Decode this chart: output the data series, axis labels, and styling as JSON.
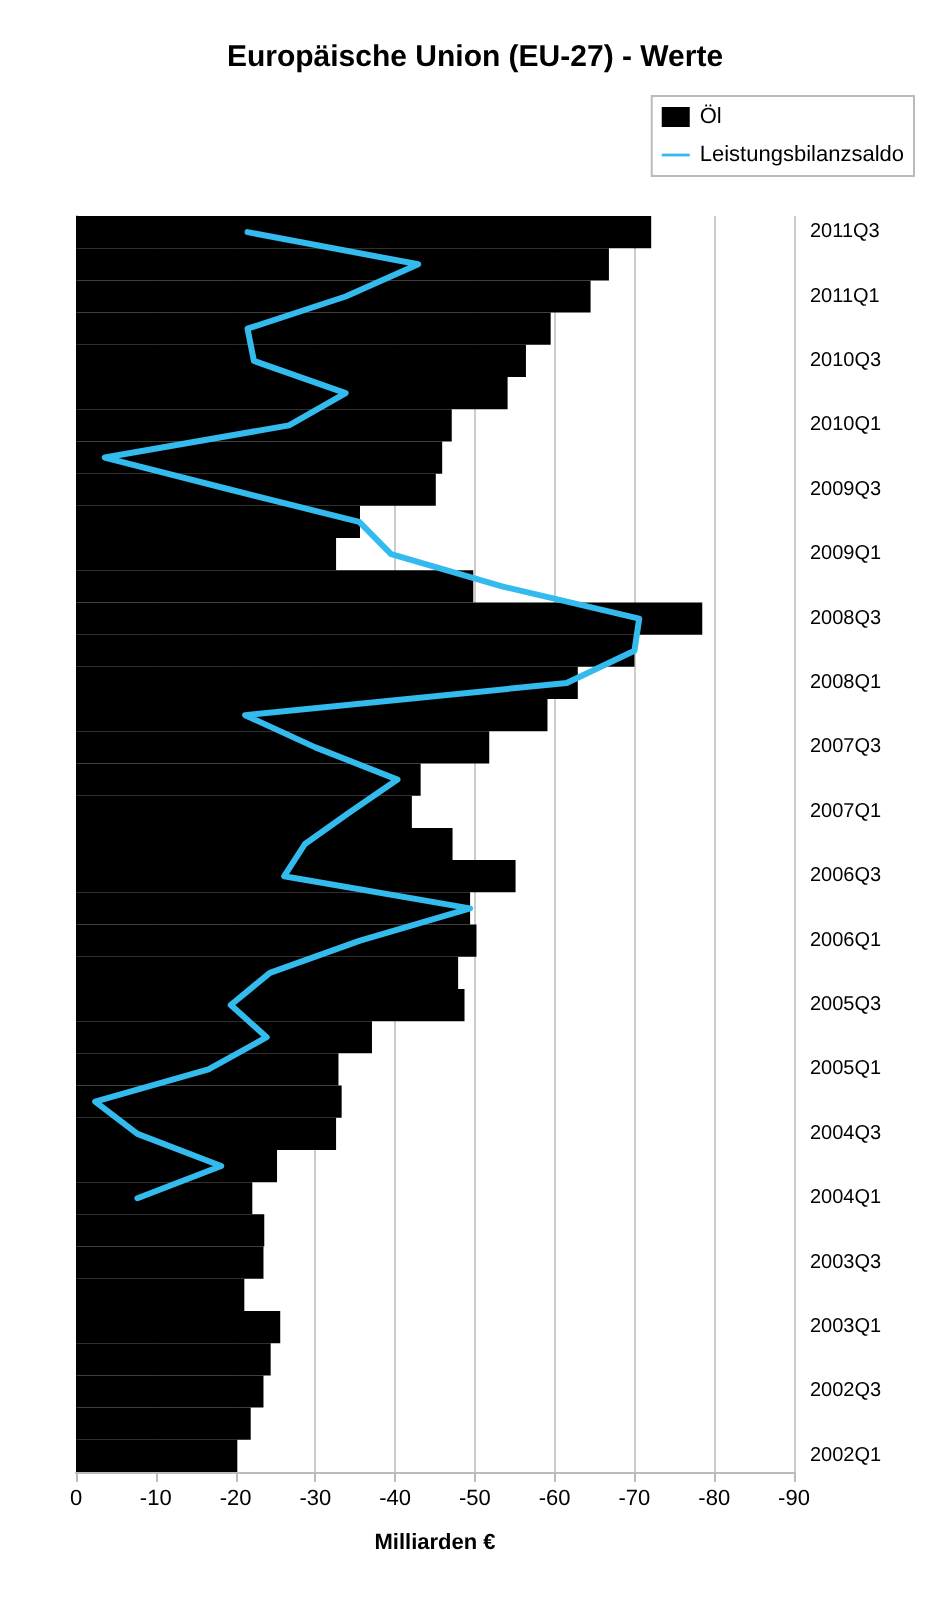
{
  "chart_data": {
    "type": "bar",
    "orientation": "horizontal",
    "title": "Europäische Union (EU-27) - Werte",
    "xlabel": "Milliarden €",
    "categories": [
      "2011Q3",
      null,
      "2011Q1",
      null,
      "2010Q3",
      null,
      "2010Q1",
      null,
      "2009Q3",
      null,
      "2009Q1",
      null,
      "2008Q3",
      null,
      "2008Q1",
      null,
      "2007Q3",
      null,
      "2007Q1",
      null,
      "2006Q3",
      null,
      "2006Q1",
      null,
      "2005Q3",
      null,
      "2005Q1",
      null,
      "2004Q3",
      null,
      "2004Q1",
      null,
      "2003Q3",
      null,
      "2003Q1",
      null,
      "2002Q3",
      null,
      "2002Q1"
    ],
    "series": [
      {
        "name": "Öl",
        "color": "#000000",
        "values": [
          -72.1,
          -66.8,
          -64.5,
          -59.5,
          -56.4,
          -54.1,
          -47.1,
          -45.9,
          -45.1,
          -35.6,
          -32.6,
          -49.8,
          -78.5,
          -70.0,
          -62.9,
          -59.1,
          -51.8,
          -43.2,
          -42.1,
          -47.2,
          -55.1,
          -49.4,
          -50.2,
          -47.9,
          -48.7,
          -37.1,
          -32.9,
          -33.3,
          -32.6,
          -25.2,
          -22.1,
          -23.6,
          -23.5,
          -21.1,
          -25.6,
          -24.4,
          -23.5,
          -21.9,
          -20.2
        ]
      },
      {
        "name": "Leistungsbilanzsaldo",
        "type": "line",
        "color": "#33bbee",
        "values": [
          -21.5,
          -42.9,
          -33.8,
          -21.5,
          -22.3,
          -33.8,
          -26.7,
          -3.6,
          -19.4,
          -35.5,
          -39.5,
          -53.4,
          -70.6,
          -70.0,
          -61.5,
          -21.2,
          -30.0,
          -40.3,
          -34.4,
          -28.7,
          -26.1,
          -49.4,
          -35.6,
          -24.3,
          -19.4,
          -23.9,
          -16.6,
          -2.4,
          -7.7,
          -18.2,
          -7.7,
          null,
          null,
          null,
          null,
          null,
          null,
          null,
          null
        ]
      }
    ],
    "xlim": [
      0,
      -90
    ],
    "xticks": [
      0,
      -10,
      -20,
      -30,
      -40,
      -50,
      -60,
      -70,
      -80,
      -90
    ],
    "grid": "x",
    "legend": "top right",
    "marker": "none",
    "line_style": "solid"
  }
}
